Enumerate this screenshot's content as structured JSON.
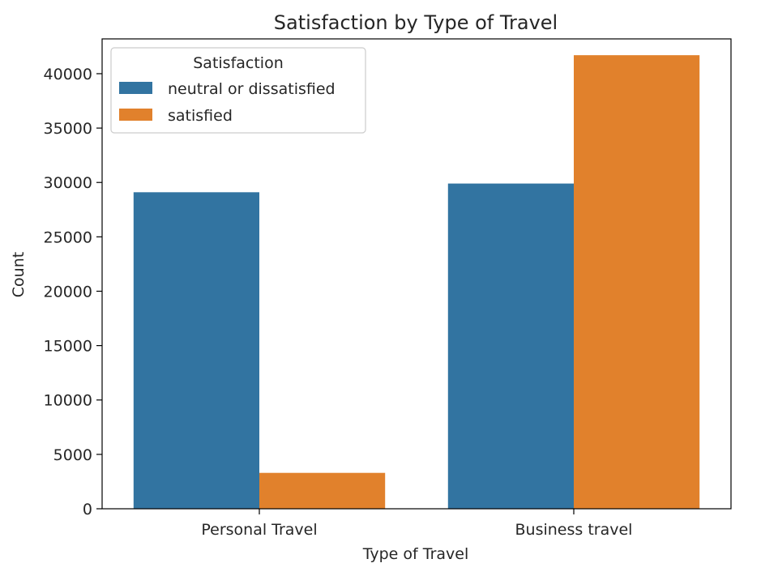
{
  "chart_data": {
    "type": "bar",
    "title": "Satisfaction by Type of Travel",
    "xlabel": "Type of Travel",
    "ylabel": "Count",
    "categories": [
      "Personal Travel",
      "Business travel"
    ],
    "series": [
      {
        "name": "neutral or dissatisfied",
        "values": [
          29100,
          29900
        ],
        "color": "#3274a1"
      },
      {
        "name": "satisfied",
        "values": [
          3300,
          41700
        ],
        "color": "#e1812c"
      }
    ],
    "ylim": [
      0,
      43200
    ],
    "yticks": [
      0,
      5000,
      10000,
      15000,
      20000,
      25000,
      30000,
      35000,
      40000
    ],
    "grid": false,
    "legend": {
      "title": "Satisfaction",
      "position": "top-left"
    }
  }
}
